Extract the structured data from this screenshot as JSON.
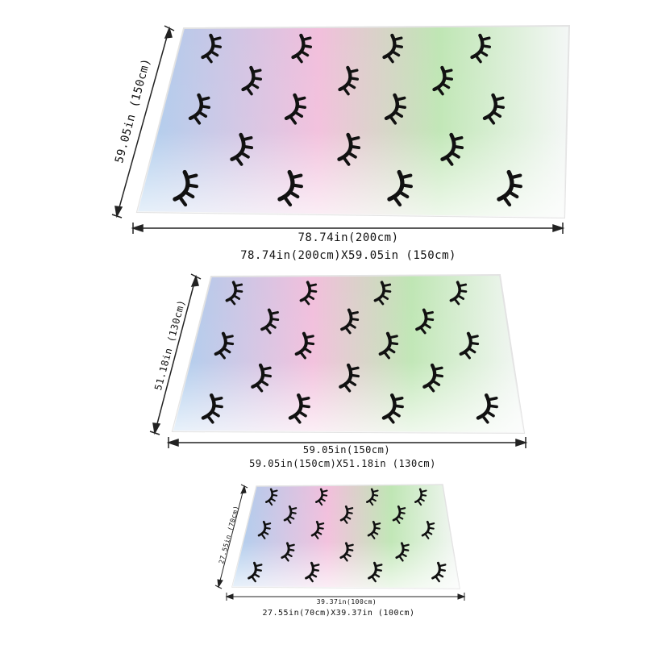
{
  "colors": {
    "blue": "#a9cdee",
    "pink": "#f2bfdc",
    "green": "#bfe6b4",
    "white": "#f4f7f6",
    "lash": "#111111",
    "line": "#222222"
  },
  "icon": "closed-eyelash",
  "blankets": [
    {
      "width_label": "78.74in(200cm)",
      "height_label": "59.05in (150cm)",
      "caption": "78.74in(200cm)X59.05in (150cm)"
    },
    {
      "width_label": "59.05in(150cm)",
      "height_label": "51.18in (130cm)",
      "caption": "59.05in(150cm)X51.18in (130cm)"
    },
    {
      "width_label": "39.37in(100cm)",
      "height_label": "27.55in (70cm)",
      "caption": "27.55in(70cm)X39.37in (100cm)"
    }
  ]
}
